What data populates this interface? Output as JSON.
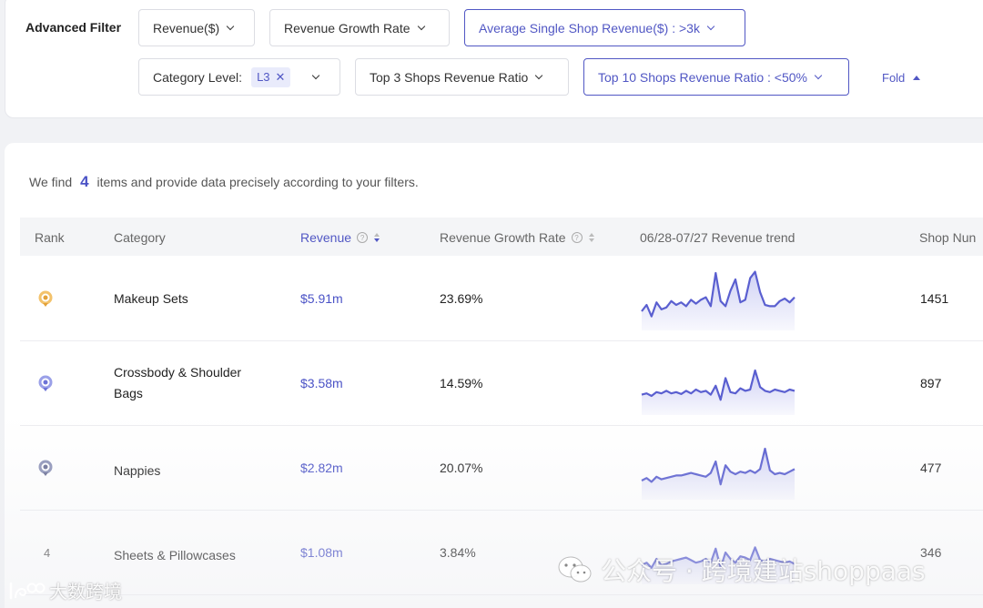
{
  "filters": {
    "title": "Advanced Filter",
    "revenue": "Revenue($)",
    "revenue_growth": "Revenue Growth Rate",
    "avg_shop_revenue": "Average Single Shop Revenue($) : >3k",
    "category_level": "Category Level:",
    "category_tag": "L3",
    "top3": "Top 3 Shops Revenue Ratio",
    "top10": "Top 10 Shops Revenue Ratio : <50%",
    "fold": "Fold"
  },
  "summary": {
    "prefix": "We find",
    "count": "4",
    "suffix": "items and provide data precisely according to your filters."
  },
  "columns": {
    "rank": "Rank",
    "category": "Category",
    "revenue": "Revenue",
    "growth": "Revenue Growth Rate",
    "trend": "06/28-07/27 Revenue trend",
    "shop_num": "Shop Nun"
  },
  "rows": [
    {
      "rank": "1",
      "category": "Makeup Sets",
      "revenue": "$5.91m",
      "growth": "23.69%",
      "shops": "1451",
      "trend": [
        30,
        40,
        22,
        44,
        33,
        36,
        46,
        40,
        44,
        38,
        48,
        42,
        48,
        52,
        38,
        90,
        46,
        38,
        62,
        80,
        44,
        48,
        82,
        92,
        60,
        40,
        38,
        38,
        46,
        50,
        44,
        52
      ]
    },
    {
      "rank": "2",
      "category": "Crossbody & Shoulder Bags",
      "revenue": "$3.58m",
      "growth": "14.59%",
      "shops": "897",
      "trend": [
        32,
        34,
        30,
        36,
        34,
        38,
        34,
        36,
        33,
        38,
        34,
        40,
        36,
        38,
        32,
        46,
        24,
        58,
        36,
        34,
        42,
        38,
        40,
        70,
        44,
        38,
        36,
        40,
        38,
        36,
        40,
        38
      ]
    },
    {
      "rank": "3",
      "category": "Nappies",
      "revenue": "$2.82m",
      "growth": "20.07%",
      "shops": "477",
      "trend": [
        30,
        34,
        28,
        36,
        32,
        34,
        36,
        38,
        38,
        40,
        42,
        40,
        38,
        36,
        42,
        60,
        24,
        54,
        44,
        40,
        44,
        42,
        46,
        42,
        48,
        80,
        46,
        40,
        42,
        40,
        44,
        48
      ]
    },
    {
      "rank": "4",
      "category": "Sheets & Pillowcases",
      "revenue": "$1.08m",
      "growth": "3.84%",
      "shops": "346",
      "trend": [
        30,
        34,
        26,
        40,
        30,
        32,
        36,
        38,
        40,
        42,
        38,
        34,
        36,
        40,
        34,
        56,
        26,
        50,
        40,
        34,
        44,
        42,
        38,
        58,
        38,
        36,
        40,
        38,
        36,
        34,
        36,
        32
      ]
    }
  ],
  "watermark": {
    "right": "公众号 · 跨境建站shoppaas",
    "left": "大数跨境"
  },
  "colors": {
    "accent": "#5157c4",
    "trend_line": "#5a5fd0"
  }
}
